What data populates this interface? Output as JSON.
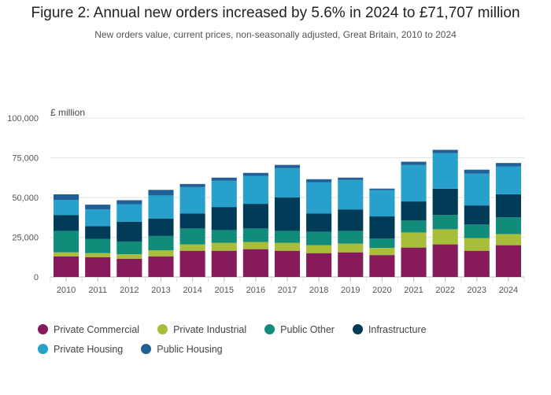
{
  "chart_data": {
    "type": "bar",
    "stacked": true,
    "title": "Figure 2: Annual new orders increased by 5.6% in 2024 to £71,707 million",
    "subtitle": "New orders value, current prices, non-seasonally adjusted, Great Britain, 2010 to 2024",
    "ylabel": "£ million",
    "xlabel": "",
    "ylim": [
      0,
      100000
    ],
    "yticks": [
      0,
      25000,
      50000,
      75000,
      100000
    ],
    "ytick_labels": [
      "0",
      "25,000",
      "50,000",
      "75,000",
      "100,000"
    ],
    "grid": true,
    "legend_position": "bottom",
    "categories": [
      "2010",
      "2011",
      "2012",
      "2013",
      "2014",
      "2015",
      "2016",
      "2017",
      "2018",
      "2019",
      "2020",
      "2021",
      "2022",
      "2023",
      "2024"
    ],
    "series": [
      {
        "name": "Private Commercial",
        "color": "#871a5b",
        "values": [
          13000,
          12500,
          11500,
          13000,
          16500,
          16500,
          17500,
          16500,
          15000,
          15500,
          13800,
          18500,
          20500,
          16500,
          20000
        ]
      },
      {
        "name": "Private Industrial",
        "color": "#a8bd3a",
        "values": [
          2500,
          2500,
          2800,
          3800,
          4000,
          5000,
          4500,
          5000,
          5000,
          5500,
          4500,
          9500,
          9500,
          8000,
          7000
        ]
      },
      {
        "name": "Public Other",
        "color": "#118c7b",
        "values": [
          13500,
          9000,
          8000,
          9000,
          10000,
          8000,
          8500,
          7500,
          8500,
          8000,
          5800,
          7500,
          9000,
          8500,
          10500
        ]
      },
      {
        "name": "Infrastructure",
        "color": "#003c57",
        "values": [
          10000,
          8000,
          12500,
          11000,
          9500,
          14500,
          15500,
          21000,
          11500,
          13500,
          14000,
          12000,
          16500,
          12000,
          14500
        ]
      },
      {
        "name": "Private Housing",
        "color": "#27a0cc",
        "values": [
          9500,
          10500,
          11000,
          14500,
          16500,
          16500,
          17500,
          18500,
          19500,
          18500,
          16500,
          23000,
          22500,
          20000,
          17500
        ]
      },
      {
        "name": "Public Housing",
        "color": "#206095",
        "values": [
          3500,
          3000,
          2500,
          3500,
          2000,
          2000,
          2000,
          2000,
          2000,
          1500,
          1000,
          2000,
          2000,
          2500,
          2200
        ]
      }
    ]
  }
}
